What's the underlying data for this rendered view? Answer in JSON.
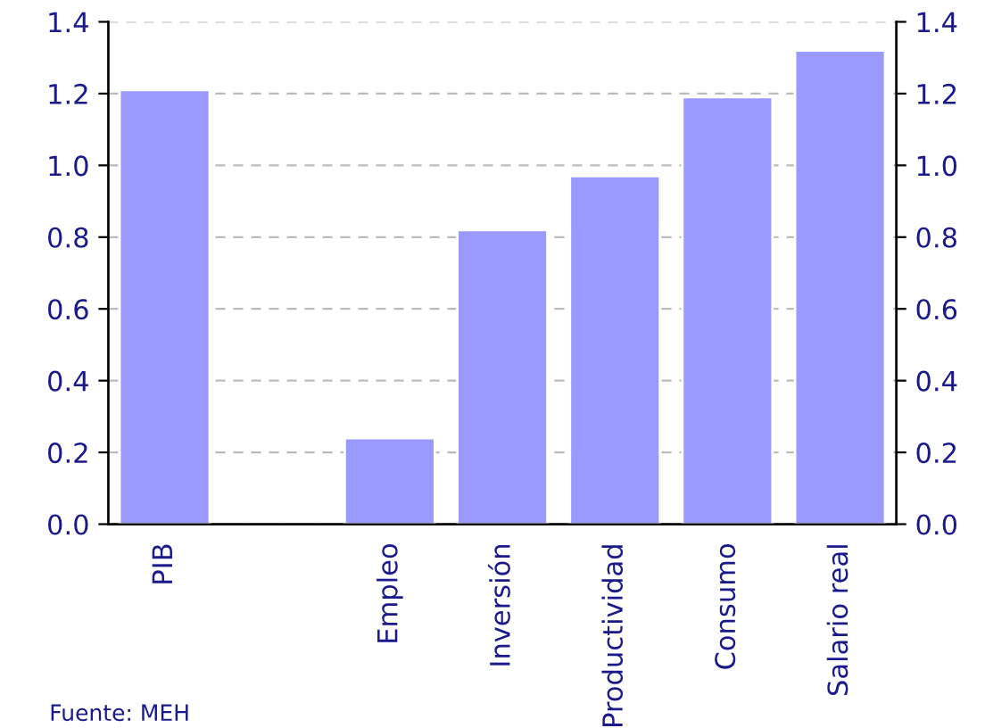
{
  "chart_data": {
    "type": "bar",
    "categories": [
      "PIB",
      null,
      "Empleo",
      "Inversión",
      "Productividad",
      "Consumo",
      "Salario real"
    ],
    "values": [
      1.21,
      null,
      0.24,
      0.82,
      0.97,
      1.19,
      1.32
    ],
    "color": "#9999ff",
    "ylim": [
      0,
      1.4
    ],
    "yticks": [
      {
        "value": 0,
        "label": "0.0"
      },
      {
        "value": 0.2,
        "label": "0.2"
      },
      {
        "value": 0.4,
        "label": "0.4"
      },
      {
        "value": 0.6,
        "label": "0.6"
      },
      {
        "value": 0.8,
        "label": "0.8"
      },
      {
        "value": 1.0,
        "label": "1.0"
      },
      {
        "value": 1.2,
        "label": "1.2"
      },
      {
        "value": 1.4,
        "label": "1.4"
      }
    ],
    "y2lim": [
      0,
      1.4
    ],
    "y2ticks": [
      {
        "value": 0,
        "label": "0.0"
      },
      {
        "value": 0.2,
        "label": "0.2"
      },
      {
        "value": 0.4,
        "label": "0.4"
      },
      {
        "value": 0.6,
        "label": "0.6"
      },
      {
        "value": 0.8,
        "label": "0.8"
      },
      {
        "value": 1.0,
        "label": "1.0"
      },
      {
        "value": 1.2,
        "label": "1.2"
      },
      {
        "value": 1.4,
        "label": "1.4"
      }
    ],
    "grid": "y",
    "annotations": [
      "Fuente: MEH"
    ]
  }
}
